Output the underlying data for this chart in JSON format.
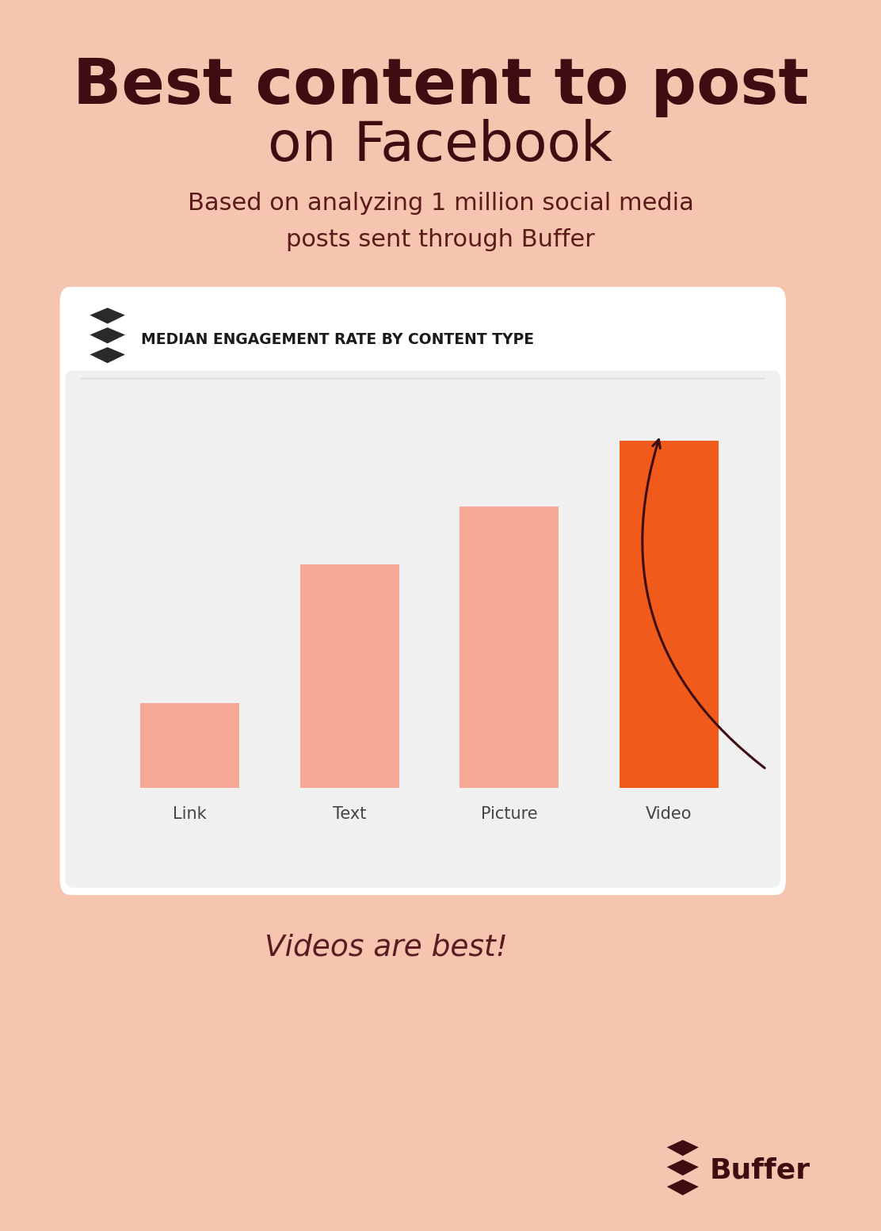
{
  "bg_color": "#f5c5b0",
  "title_line1": "Best content to post",
  "title_line2": "on Facebook",
  "subtitle": "Based on analyzing 1 million social media\nposts sent through Buffer",
  "title_color": "#3d0d12",
  "subtitle_color": "#5c1a1a",
  "chart_title": "MEDIAN ENGAGEMENT RATE BY CONTENT TYPE",
  "chart_bg": "#f2f2f2",
  "chart_border": "#ffffff",
  "categories": [
    "Link",
    "Text",
    "Picture",
    "Video"
  ],
  "rel_values": [
    0.22,
    0.58,
    0.73,
    0.9
  ],
  "bar_colors": [
    "#f5a896",
    "#f5a896",
    "#f5a896",
    "#f05a1a"
  ],
  "annotation_text": "Videos are best!",
  "annotation_color": "#5c1a22",
  "buffer_text": "Buffer",
  "buffer_color": "#3d0d12"
}
